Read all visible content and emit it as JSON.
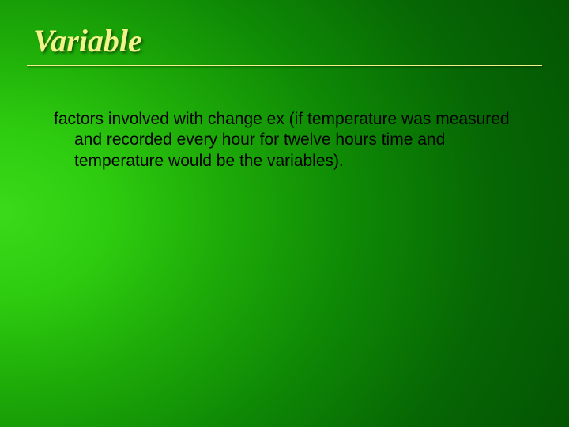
{
  "slide": {
    "title": "Variable",
    "body": "factors involved with change ex (if temperature was measured and recorded every hour for twelve hours time and temperature would be the variables).",
    "title_color": "#F3F38C",
    "underline_color": "#F3F38C",
    "body_color": "#000000",
    "title_fontsize": 40,
    "body_fontsize": 21,
    "background_gradient": {
      "type": "radial",
      "center": "left-center",
      "stops": [
        "#3ADB1A",
        "#2ECC0F",
        "#1DAA08",
        "#0E8805",
        "#066604",
        "#024A02"
      ]
    }
  }
}
